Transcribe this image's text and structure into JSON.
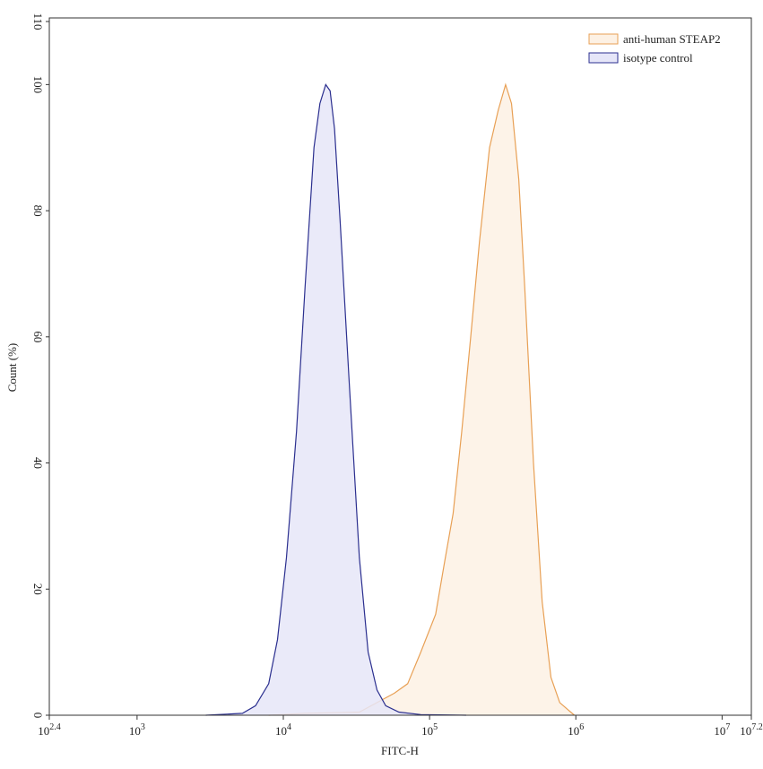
{
  "chart_data": {
    "type": "area",
    "x_label": "FITC-H",
    "y_label": "Count (%)",
    "log_x": true,
    "xlim": [
      251.19,
      15848931.92
    ],
    "xticks": [
      {
        "value": 251.19,
        "label": "10",
        "exponent": "2.4"
      },
      {
        "value": 1000,
        "label": "10",
        "exponent": "3"
      },
      {
        "value": 10000,
        "label": "10",
        "exponent": "4"
      },
      {
        "value": 100000,
        "label": "10",
        "exponent": "5"
      },
      {
        "value": 1000000,
        "label": "10",
        "exponent": "6"
      },
      {
        "value": 10000000,
        "label": "10",
        "exponent": "7"
      },
      {
        "value": 15848931.92,
        "label": "10",
        "exponent": "7.2"
      }
    ],
    "ylim": [
      0,
      110
    ],
    "yticks": [
      0,
      20,
      40,
      60,
      80,
      100,
      110
    ],
    "legend": "top-right",
    "series": [
      {
        "name": "anti-human STEAP2",
        "color": "#e8a055",
        "fill": "#fdf1e4",
        "x": [
          7940,
          14100,
          33100,
          43700,
          57500,
          70800,
          87100,
          110000,
          126000,
          145000,
          166000,
          191000,
          219000,
          257000,
          295000,
          331000,
          363000,
          407000,
          447000,
          513000,
          589000,
          676000,
          776000,
          977000
        ],
        "values": [
          0,
          0.3,
          0.5,
          2,
          3.5,
          5,
          10,
          16,
          24,
          32,
          45,
          60,
          75,
          90,
          96,
          100,
          97,
          85,
          68,
          40,
          18,
          6,
          2,
          0
        ]
      },
      {
        "name": "isotype control",
        "color": "#2b2f8f",
        "fill": "#e6e6f8",
        "x": [
          2950,
          5250,
          6460,
          7940,
          9120,
          10500,
          12300,
          14100,
          16200,
          17800,
          19500,
          20900,
          22400,
          24500,
          28200,
          33100,
          38000,
          43700,
          50100,
          61700,
          87100,
          178000
        ],
        "values": [
          0,
          0.3,
          1.5,
          5,
          12,
          25,
          45,
          68,
          90,
          97,
          100,
          99,
          93,
          78,
          53,
          25,
          10,
          4,
          1.5,
          0.5,
          0.1,
          0
        ]
      }
    ]
  }
}
